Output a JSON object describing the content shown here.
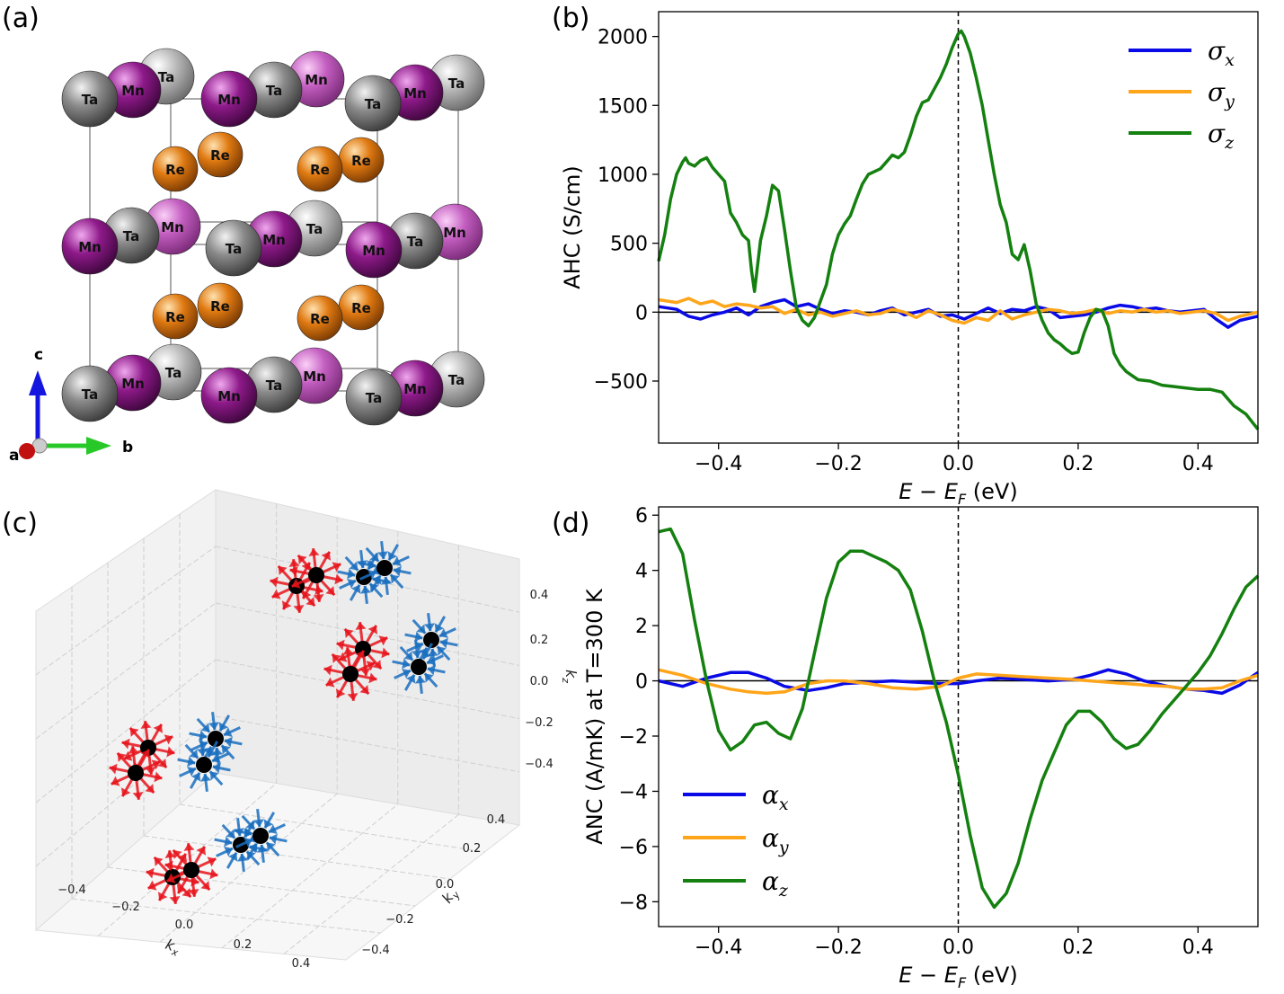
{
  "panels": {
    "a": {
      "label": "(a)",
      "axis_labels": {
        "a": "a",
        "b": "b",
        "c": "c"
      },
      "atom_colors": {
        "Ta": "#7a7a7a",
        "Mn": "#8e1a8a",
        "Re": "#e07a12"
      },
      "atom_names": {
        "Ta": "Ta",
        "Mn": "Mn",
        "Re": "Re"
      }
    },
    "b": {
      "label": "(b)"
    },
    "c": {
      "label": "(c)",
      "xlabel": "k",
      "xsub": "x",
      "ylabel": "k",
      "ysub": "y",
      "zlabel": "k",
      "zsub": "z",
      "ticks": [
        "−0.4",
        "−0.2",
        "0.0",
        "0.2",
        "0.4"
      ],
      "positive_color": "#e8141c",
      "negative_color": "#1a6fc0"
    },
    "d": {
      "label": "(d)"
    }
  },
  "chart_data": [
    {
      "id": "b",
      "type": "line",
      "xlabel_main": "E − E",
      "xlabel_sub": "F",
      "xlabel_unit": " (eV)",
      "ylabel": "AHC (S/cm)",
      "xlim": [
        -0.5,
        0.5
      ],
      "ylim": [
        -950,
        2180
      ],
      "xticks": [
        -0.4,
        -0.2,
        0.0,
        0.2,
        0.4
      ],
      "xtick_labels": [
        "−0.4",
        "−0.2",
        "0.0",
        "0.2",
        "0.4"
      ],
      "yticks": [
        -500,
        0,
        500,
        1000,
        1500,
        2000
      ],
      "ytick_labels": [
        "−500",
        "0",
        "500",
        "1000",
        "1500",
        "2000"
      ],
      "legend_position": "top-right",
      "reference_lines": {
        "horizontal": 0,
        "vertical_dashed": 0
      },
      "series": [
        {
          "name": "σ",
          "sub": "x",
          "color": "#0a0ae6",
          "x": [
            -0.5,
            -0.47,
            -0.45,
            -0.43,
            -0.41,
            -0.39,
            -0.37,
            -0.35,
            -0.33,
            -0.31,
            -0.29,
            -0.27,
            -0.25,
            -0.23,
            -0.21,
            -0.19,
            -0.17,
            -0.15,
            -0.13,
            -0.11,
            -0.09,
            -0.07,
            -0.05,
            -0.03,
            -0.01,
            0.01,
            0.03,
            0.05,
            0.07,
            0.09,
            0.11,
            0.13,
            0.15,
            0.17,
            0.19,
            0.21,
            0.23,
            0.25,
            0.27,
            0.29,
            0.31,
            0.33,
            0.35,
            0.37,
            0.39,
            0.41,
            0.43,
            0.45,
            0.47,
            0.5
          ],
          "y": [
            40,
            20,
            -30,
            -50,
            -20,
            0,
            30,
            -20,
            40,
            70,
            90,
            40,
            60,
            20,
            -10,
            10,
            0,
            -20,
            10,
            30,
            -20,
            0,
            20,
            -30,
            -20,
            -50,
            -10,
            30,
            -10,
            20,
            10,
            40,
            20,
            -40,
            -30,
            -20,
            0,
            30,
            50,
            40,
            20,
            30,
            10,
            0,
            10,
            20,
            -50,
            -110,
            -60,
            -30
          ]
        },
        {
          "name": "σ",
          "sub": "y",
          "color": "#ffa51a",
          "x": [
            -0.5,
            -0.47,
            -0.45,
            -0.43,
            -0.41,
            -0.39,
            -0.37,
            -0.35,
            -0.33,
            -0.31,
            -0.29,
            -0.27,
            -0.25,
            -0.23,
            -0.21,
            -0.19,
            -0.17,
            -0.15,
            -0.13,
            -0.11,
            -0.09,
            -0.07,
            -0.05,
            -0.03,
            -0.01,
            0.01,
            0.03,
            0.05,
            0.07,
            0.09,
            0.11,
            0.13,
            0.15,
            0.17,
            0.19,
            0.21,
            0.23,
            0.25,
            0.27,
            0.29,
            0.31,
            0.33,
            0.35,
            0.37,
            0.39,
            0.41,
            0.43,
            0.45,
            0.47,
            0.5
          ],
          "y": [
            90,
            70,
            100,
            60,
            80,
            40,
            60,
            50,
            30,
            40,
            -10,
            20,
            -20,
            0,
            -30,
            -10,
            10,
            -20,
            -10,
            20,
            0,
            -40,
            10,
            -20,
            -60,
            -80,
            -40,
            -60,
            10,
            -50,
            -20,
            0,
            20,
            10,
            -10,
            0,
            20,
            -10,
            10,
            0,
            20,
            0,
            10,
            -10,
            0,
            10,
            -10,
            -60,
            -30,
            0
          ]
        },
        {
          "name": "σ",
          "sub": "z",
          "color": "#14800f",
          "x": [
            -0.5,
            -0.49,
            -0.48,
            -0.47,
            -0.46,
            -0.455,
            -0.45,
            -0.44,
            -0.43,
            -0.42,
            -0.41,
            -0.4,
            -0.39,
            -0.38,
            -0.37,
            -0.36,
            -0.35,
            -0.345,
            -0.34,
            -0.33,
            -0.32,
            -0.31,
            -0.3,
            -0.29,
            -0.28,
            -0.27,
            -0.26,
            -0.25,
            -0.24,
            -0.23,
            -0.22,
            -0.21,
            -0.2,
            -0.19,
            -0.18,
            -0.17,
            -0.16,
            -0.15,
            -0.14,
            -0.13,
            -0.12,
            -0.11,
            -0.1,
            -0.09,
            -0.08,
            -0.07,
            -0.06,
            -0.05,
            -0.04,
            -0.03,
            -0.02,
            -0.01,
            0.0,
            0.005,
            0.01,
            0.02,
            0.03,
            0.04,
            0.05,
            0.06,
            0.07,
            0.08,
            0.09,
            0.1,
            0.11,
            0.12,
            0.13,
            0.14,
            0.15,
            0.16,
            0.17,
            0.18,
            0.19,
            0.2,
            0.21,
            0.22,
            0.23,
            0.24,
            0.25,
            0.26,
            0.27,
            0.28,
            0.29,
            0.3,
            0.32,
            0.34,
            0.36,
            0.38,
            0.4,
            0.42,
            0.44,
            0.46,
            0.48,
            0.5
          ],
          "y": [
            370,
            560,
            820,
            1000,
            1090,
            1120,
            1080,
            1060,
            1100,
            1120,
            1050,
            1000,
            950,
            720,
            650,
            560,
            520,
            300,
            150,
            520,
            700,
            920,
            880,
            600,
            300,
            30,
            -60,
            -100,
            -40,
            80,
            200,
            420,
            560,
            640,
            700,
            820,
            930,
            1000,
            1020,
            1040,
            1090,
            1140,
            1120,
            1160,
            1280,
            1420,
            1520,
            1540,
            1620,
            1700,
            1800,
            1920,
            2020,
            2040,
            2000,
            1880,
            1700,
            1500,
            1250,
            1000,
            780,
            650,
            420,
            380,
            490,
            300,
            60,
            -60,
            -150,
            -200,
            -230,
            -270,
            -300,
            -290,
            -150,
            -40,
            20,
            10,
            -100,
            -300,
            -380,
            -430,
            -460,
            -490,
            -500,
            -530,
            -540,
            -550,
            -560,
            -560,
            -580,
            -680,
            -740,
            -850
          ]
        }
      ]
    },
    {
      "id": "d",
      "type": "line",
      "xlabel_main": "E − E",
      "xlabel_sub": "F",
      "xlabel_unit": " (eV)",
      "ylabel": "ANC (A/mK) at T=300 K",
      "xlim": [
        -0.5,
        0.5
      ],
      "ylim": [
        -8.9,
        6.3
      ],
      "xticks": [
        -0.4,
        -0.2,
        0.0,
        0.2,
        0.4
      ],
      "xtick_labels": [
        "−0.4",
        "−0.2",
        "0.0",
        "0.2",
        "0.4"
      ],
      "yticks": [
        -8,
        -6,
        -4,
        -2,
        0,
        2,
        4,
        6
      ],
      "ytick_labels": [
        "−8",
        "−6",
        "−4",
        "−2",
        "0",
        "2",
        "4",
        "6"
      ],
      "legend_position": "bottom-left",
      "reference_lines": {
        "horizontal": 0,
        "vertical_dashed": 0
      },
      "series": [
        {
          "name": "α",
          "sub": "x",
          "color": "#0a0ae6",
          "x": [
            -0.5,
            -0.46,
            -0.42,
            -0.38,
            -0.35,
            -0.32,
            -0.29,
            -0.25,
            -0.22,
            -0.19,
            -0.15,
            -0.11,
            -0.07,
            -0.03,
            0.0,
            0.03,
            0.07,
            0.11,
            0.15,
            0.19,
            0.22,
            0.25,
            0.28,
            0.31,
            0.35,
            0.38,
            0.41,
            0.44,
            0.47,
            0.5
          ],
          "y": [
            0.0,
            -0.2,
            0.1,
            0.3,
            0.3,
            0.1,
            -0.2,
            -0.35,
            -0.25,
            -0.1,
            -0.05,
            0.0,
            -0.05,
            -0.1,
            -0.1,
            0.0,
            0.1,
            0.05,
            0.0,
            0.05,
            0.2,
            0.4,
            0.25,
            0.0,
            -0.2,
            -0.3,
            -0.35,
            -0.45,
            -0.15,
            0.3
          ]
        },
        {
          "name": "α",
          "sub": "y",
          "color": "#ffa51a",
          "x": [
            -0.5,
            -0.46,
            -0.42,
            -0.38,
            -0.35,
            -0.32,
            -0.29,
            -0.25,
            -0.22,
            -0.19,
            -0.15,
            -0.11,
            -0.07,
            -0.03,
            0.0,
            0.03,
            0.07,
            0.11,
            0.15,
            0.19,
            0.22,
            0.25,
            0.28,
            0.31,
            0.35,
            0.38,
            0.41,
            0.44,
            0.47,
            0.5
          ],
          "y": [
            0.4,
            0.2,
            -0.1,
            -0.3,
            -0.4,
            -0.45,
            -0.4,
            -0.1,
            0.0,
            0.0,
            -0.1,
            -0.25,
            -0.3,
            -0.2,
            0.1,
            0.25,
            0.2,
            0.15,
            0.1,
            0.05,
            0.0,
            -0.05,
            -0.1,
            -0.15,
            -0.2,
            -0.3,
            -0.3,
            -0.25,
            0.0,
            0.2
          ]
        },
        {
          "name": "α",
          "sub": "z",
          "color": "#14800f",
          "x": [
            -0.5,
            -0.48,
            -0.46,
            -0.44,
            -0.42,
            -0.4,
            -0.38,
            -0.36,
            -0.34,
            -0.32,
            -0.3,
            -0.28,
            -0.26,
            -0.24,
            -0.22,
            -0.2,
            -0.18,
            -0.16,
            -0.14,
            -0.12,
            -0.1,
            -0.08,
            -0.06,
            -0.04,
            -0.02,
            0.0,
            0.02,
            0.04,
            0.06,
            0.08,
            0.1,
            0.12,
            0.14,
            0.16,
            0.18,
            0.2,
            0.22,
            0.24,
            0.26,
            0.28,
            0.3,
            0.32,
            0.34,
            0.36,
            0.38,
            0.4,
            0.42,
            0.44,
            0.46,
            0.48,
            0.5
          ],
          "y": [
            5.4,
            5.5,
            4.6,
            2.2,
            0.0,
            -1.8,
            -2.5,
            -2.2,
            -1.6,
            -1.5,
            -1.9,
            -2.1,
            -1.0,
            1.0,
            3.0,
            4.3,
            4.7,
            4.7,
            4.5,
            4.3,
            4.0,
            3.3,
            1.8,
            0.0,
            -1.5,
            -3.4,
            -5.6,
            -7.5,
            -8.2,
            -7.7,
            -6.6,
            -5.0,
            -3.6,
            -2.6,
            -1.6,
            -1.1,
            -1.1,
            -1.5,
            -2.1,
            -2.45,
            -2.3,
            -1.8,
            -1.2,
            -0.7,
            -0.2,
            0.3,
            0.9,
            1.7,
            2.6,
            3.4,
            3.8
          ]
        }
      ]
    }
  ]
}
